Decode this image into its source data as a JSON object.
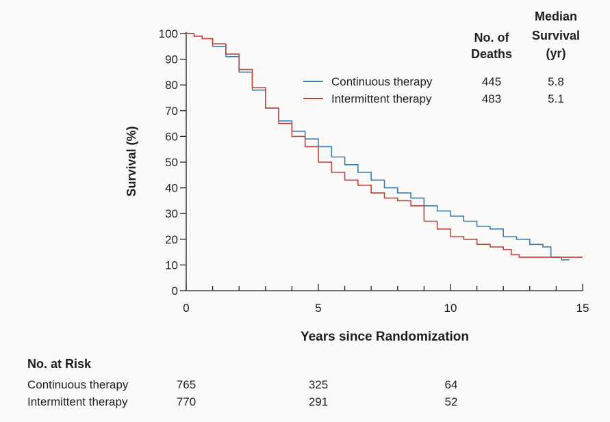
{
  "chart_data": {
    "type": "line",
    "title": "",
    "xlabel": "Years since Randomization",
    "ylabel": "Survival (%)",
    "xlim": [
      0,
      15
    ],
    "ylim": [
      0,
      100
    ],
    "x_ticks": [
      0,
      5,
      10,
      15
    ],
    "y_ticks": [
      0,
      10,
      20,
      30,
      40,
      50,
      60,
      70,
      80,
      90,
      100
    ],
    "grid": false,
    "legend_position": "top-right",
    "legend_headers": {
      "deaths": [
        "No. of",
        "Deaths"
      ],
      "median": [
        "Median",
        "Survival",
        "(yr)"
      ]
    },
    "series": [
      {
        "name": "Continuous therapy",
        "color": "#3a7fb5",
        "deaths": "445",
        "median_survival": "5.8",
        "x": [
          0,
          0.3,
          0.6,
          1.0,
          1.5,
          2.0,
          2.5,
          3.0,
          3.5,
          4.0,
          4.5,
          5.0,
          5.5,
          6.0,
          6.5,
          7.0,
          7.5,
          8.0,
          8.5,
          9.0,
          9.5,
          10.0,
          10.5,
          11.0,
          11.5,
          12.0,
          12.5,
          13.0,
          13.5,
          13.8,
          14.2,
          14.5
        ],
        "y": [
          100,
          99,
          98,
          95,
          91,
          85,
          78,
          71,
          66,
          62,
          59,
          56,
          52,
          49,
          46,
          43,
          40,
          38,
          36,
          33,
          31,
          29,
          27,
          25,
          24,
          21,
          20,
          18,
          17,
          13,
          12,
          12
        ]
      },
      {
        "name": "Intermittent therapy",
        "color": "#c0463b",
        "deaths": "483",
        "median_survival": "5.1",
        "x": [
          0,
          0.3,
          0.6,
          1.0,
          1.5,
          2.0,
          2.5,
          3.0,
          3.5,
          4.0,
          4.5,
          5.0,
          5.5,
          6.0,
          6.5,
          7.0,
          7.5,
          8.0,
          8.5,
          9.0,
          9.5,
          10.0,
          10.5,
          11.0,
          11.5,
          12.0,
          12.3,
          12.6,
          13.0,
          13.5,
          14.0,
          15.0
        ],
        "y": [
          100,
          99,
          98,
          96,
          92,
          86,
          79,
          71,
          65,
          60,
          56,
          50,
          46,
          43,
          41,
          38,
          36,
          35,
          33,
          27,
          24,
          21,
          20,
          18,
          17,
          16,
          14,
          13,
          13,
          13,
          13,
          13
        ]
      }
    ]
  },
  "at_risk": {
    "title": "No. at Risk",
    "years": [
      0,
      5,
      10
    ],
    "rows": [
      {
        "label": "Continuous therapy",
        "values": [
          "765",
          "325",
          "64"
        ]
      },
      {
        "label": "Intermittent therapy",
        "values": [
          "770",
          "291",
          "52"
        ]
      }
    ]
  }
}
